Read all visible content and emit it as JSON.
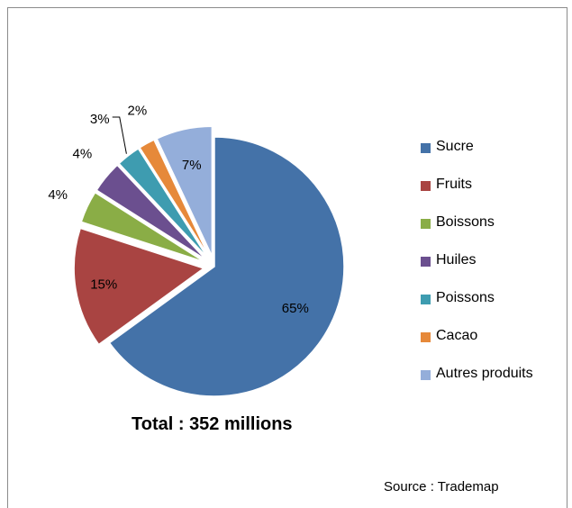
{
  "chart_data": {
    "type": "pie",
    "categories": [
      "Sucre",
      "Fruits",
      "Boissons",
      "Huiles",
      "Poissons",
      "Cacao",
      "Autres produits"
    ],
    "values": [
      65,
      15,
      4,
      4,
      3,
      2,
      7
    ],
    "data_labels": [
      "65%",
      "15%",
      "4%",
      "4%",
      "3%",
      "2%",
      "7%"
    ],
    "colors": [
      "#4472A8",
      "#A94442",
      "#8AAD46",
      "#6B4F8F",
      "#3E9CB0",
      "#E6893A",
      "#94AEDA"
    ],
    "exploded": true,
    "legend_position": "right",
    "note": "Total : 352 millions",
    "source": "Source : Trademap"
  }
}
